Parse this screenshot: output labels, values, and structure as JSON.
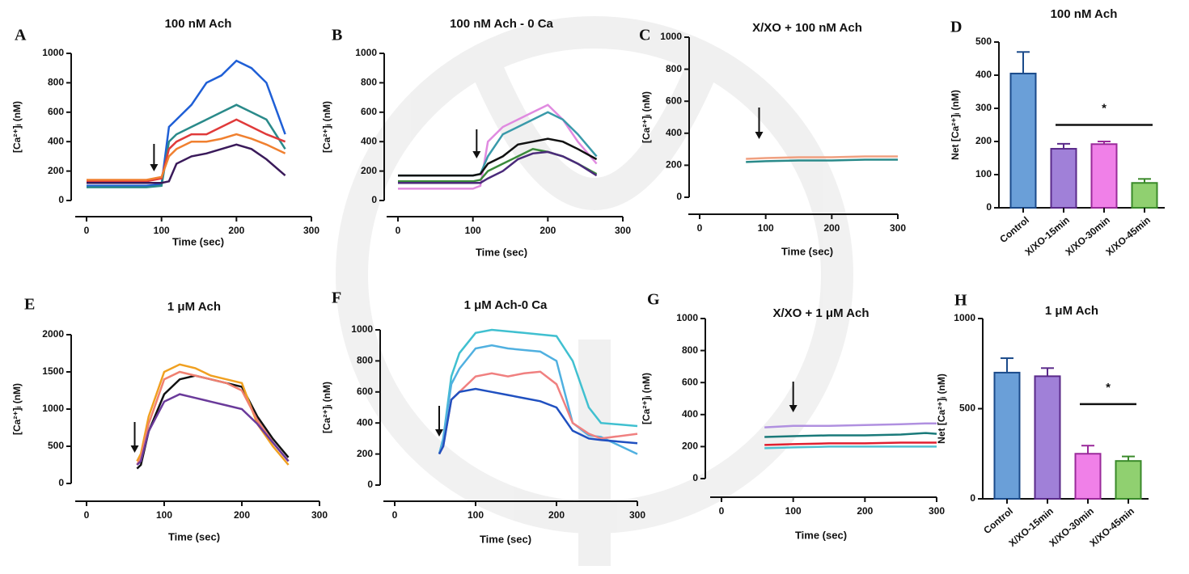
{
  "chart_data": [
    {
      "type": "line",
      "panel": "A",
      "title": "100 nM Ach",
      "x_label": "Time (sec)",
      "y_label": "[Ca²⁺]ᵢ (nM)",
      "xlim": [
        0,
        300
      ],
      "xticks": [
        0,
        100,
        200,
        300
      ],
      "ylim": [
        0,
        1000
      ],
      "yticks": [
        0,
        200,
        400,
        600,
        800,
        1000
      ],
      "arrow_x": 90,
      "x": [
        0,
        20,
        40,
        60,
        80,
        100,
        110,
        120,
        140,
        160,
        180,
        200,
        220,
        240,
        265
      ],
      "series": [
        {
          "color": "#1f5fd6",
          "values": [
            100,
            100,
            100,
            100,
            100,
            110,
            500,
            550,
            650,
            800,
            850,
            950,
            900,
            800,
            450
          ]
        },
        {
          "color": "#2a8a8a",
          "values": [
            90,
            90,
            90,
            90,
            90,
            100,
            400,
            450,
            500,
            550,
            600,
            650,
            600,
            550,
            350
          ]
        },
        {
          "color": "#e03a3a",
          "values": [
            130,
            130,
            130,
            130,
            130,
            150,
            350,
            400,
            450,
            450,
            500,
            550,
            500,
            450,
            400
          ]
        },
        {
          "color": "#f08030",
          "values": [
            140,
            140,
            140,
            140,
            140,
            160,
            300,
            350,
            400,
            400,
            420,
            450,
            420,
            380,
            320
          ]
        },
        {
          "color": "#3a1a5a",
          "values": [
            120,
            120,
            120,
            120,
            120,
            120,
            130,
            250,
            300,
            320,
            350,
            380,
            350,
            280,
            170
          ]
        }
      ]
    },
    {
      "type": "line",
      "panel": "B",
      "title": "100 nM Ach - 0 Ca",
      "x_label": "Time (sec)",
      "y_label": "[Ca²⁺]ᵢ (nM)",
      "xlim": [
        0,
        300
      ],
      "xticks": [
        0,
        100,
        200,
        300
      ],
      "ylim": [
        0,
        1000
      ],
      "yticks": [
        0,
        200,
        400,
        600,
        800,
        1000
      ],
      "arrow_x": 105,
      "x": [
        0,
        20,
        40,
        60,
        80,
        100,
        110,
        120,
        140,
        160,
        180,
        200,
        220,
        240,
        265
      ],
      "series": [
        {
          "color": "#e08ae0",
          "values": [
            80,
            80,
            80,
            80,
            80,
            80,
            100,
            400,
            500,
            550,
            600,
            650,
            550,
            400,
            250
          ]
        },
        {
          "color": "#3a9aaa",
          "values": [
            170,
            170,
            170,
            170,
            170,
            170,
            180,
            300,
            450,
            500,
            550,
            600,
            550,
            450,
            300
          ]
        },
        {
          "color": "#111111",
          "values": [
            170,
            170,
            170,
            170,
            170,
            170,
            180,
            250,
            300,
            380,
            400,
            420,
            400,
            350,
            280
          ]
        },
        {
          "color": "#3a8a3a",
          "values": [
            130,
            130,
            130,
            130,
            130,
            130,
            140,
            200,
            250,
            300,
            350,
            330,
            300,
            250,
            180
          ]
        },
        {
          "color": "#4a2a7a",
          "values": [
            120,
            120,
            120,
            120,
            120,
            120,
            120,
            150,
            200,
            280,
            320,
            330,
            300,
            250,
            170
          ]
        }
      ]
    },
    {
      "type": "line",
      "panel": "C",
      "title": "X/XO + 100 nM Ach",
      "x_label": "Time (sec)",
      "y_label": "[Ca²⁺]ᵢ (nM)",
      "xlim": [
        0,
        300
      ],
      "xticks": [
        0,
        100,
        200,
        300
      ],
      "ylim": [
        0,
        1000
      ],
      "yticks": [
        0,
        200,
        400,
        600,
        800,
        1000
      ],
      "arrow_x": 90,
      "x": [
        70,
        100,
        150,
        200,
        250,
        300
      ],
      "series": [
        {
          "color": "#f0a080",
          "values": [
            240,
            245,
            250,
            250,
            255,
            255
          ]
        },
        {
          "color": "#2a8a8a",
          "values": [
            220,
            225,
            230,
            230,
            235,
            235
          ]
        }
      ]
    },
    {
      "type": "bar",
      "panel": "D",
      "title": "100 nM Ach",
      "y_label": "Net [Ca²⁺]ᵢ (nM)",
      "annotation": "*",
      "ylim": [
        0,
        500
      ],
      "yticks": [
        0,
        100,
        200,
        300,
        400,
        500
      ],
      "categories": [
        "Control",
        "X/XO-15min",
        "X/XO-30min",
        "X/XO-45min"
      ],
      "values": [
        405,
        178,
        192,
        75
      ],
      "errors": [
        65,
        15,
        8,
        12
      ],
      "colors": [
        "#6a9fd8",
        "#a080d8",
        "#f080e8",
        "#90d070"
      ],
      "edge_colors": [
        "#1a4a8a",
        "#5a2a8a",
        "#9a2a9a",
        "#3a8a2a"
      ]
    },
    {
      "type": "line",
      "panel": "E",
      "title": "1 μM Ach",
      "x_label": "Time (sec)",
      "y_label": "[Ca²⁺]ᵢ (nM)",
      "xlim": [
        0,
        300
      ],
      "xticks": [
        0,
        100,
        200,
        300
      ],
      "ylim": [
        0,
        2000
      ],
      "yticks": [
        0,
        500,
        1000,
        1500,
        2000
      ],
      "arrow_x": 62,
      "x": [
        65,
        70,
        80,
        100,
        120,
        140,
        160,
        180,
        200,
        220,
        240,
        260
      ],
      "series": [
        {
          "color": "#111111",
          "values": [
            200,
            250,
            700,
            1200,
            1400,
            1450,
            1400,
            1350,
            1300,
            900,
            600,
            350
          ]
        },
        {
          "color": "#f0a020",
          "values": [
            300,
            400,
            900,
            1500,
            1600,
            1550,
            1450,
            1400,
            1350,
            800,
            500,
            250
          ]
        },
        {
          "color": "#f08070",
          "values": [
            250,
            350,
            800,
            1400,
            1500,
            1450,
            1400,
            1350,
            1250,
            850,
            550,
            300
          ]
        },
        {
          "color": "#6a3a9a",
          "values": [
            250,
            300,
            700,
            1100,
            1200,
            1150,
            1100,
            1050,
            1000,
            800,
            550,
            300
          ]
        }
      ]
    },
    {
      "type": "line",
      "panel": "F",
      "title": "1 μM Ach-0 Ca",
      "x_label": "Time (sec)",
      "y_label": "[Ca²⁺]ᵢ (nM)",
      "xlim": [
        0,
        300
      ],
      "xticks": [
        0,
        100,
        200,
        300
      ],
      "ylim": [
        0,
        1000
      ],
      "yticks": [
        0,
        200,
        400,
        600,
        800,
        1000
      ],
      "arrow_x": 55,
      "x": [
        55,
        60,
        70,
        80,
        100,
        120,
        140,
        160,
        180,
        200,
        220,
        240,
        255,
        300
      ],
      "series": [
        {
          "color": "#40c0d0",
          "values": [
            200,
            300,
            700,
            850,
            980,
            1000,
            990,
            980,
            970,
            960,
            800,
            500,
            400,
            380
          ]
        },
        {
          "color": "#50b0e0",
          "values": [
            200,
            300,
            650,
            750,
            880,
            900,
            880,
            870,
            860,
            800,
            400,
            320,
            310,
            200
          ]
        },
        {
          "color": "#f08080",
          "values": [
            200,
            250,
            550,
            600,
            700,
            720,
            700,
            720,
            730,
            650,
            400,
            330,
            300,
            330
          ]
        },
        {
          "color": "#2050c0",
          "values": [
            200,
            250,
            550,
            600,
            620,
            600,
            580,
            560,
            540,
            500,
            350,
            300,
            290,
            270
          ]
        }
      ]
    },
    {
      "type": "line",
      "panel": "G",
      "title": "X/XO + 1 μM Ach",
      "x_label": "Time (sec)",
      "y_label": "[Ca²⁺]ᵢ (nM)",
      "xlim": [
        0,
        300
      ],
      "xticks": [
        0,
        100,
        200,
        300
      ],
      "ylim": [
        0,
        1000
      ],
      "yticks": [
        0,
        200,
        400,
        600,
        800,
        1000
      ],
      "arrow_x": 100,
      "x": [
        60,
        100,
        150,
        200,
        250,
        285,
        300
      ],
      "series": [
        {
          "color": "#b090e0",
          "values": [
            320,
            330,
            330,
            335,
            340,
            345,
            345
          ]
        },
        {
          "color": "#1a7a7a",
          "values": [
            260,
            265,
            270,
            270,
            275,
            285,
            280
          ]
        },
        {
          "color": "#e02030",
          "values": [
            210,
            215,
            220,
            220,
            225,
            225,
            225
          ]
        },
        {
          "color": "#50c0d0",
          "values": [
            190,
            195,
            200,
            200,
            200,
            200,
            200
          ]
        }
      ]
    },
    {
      "type": "bar",
      "panel": "H",
      "title": "1 μM Ach",
      "y_label": "Net [Ca²⁺]ᵢ (nM)",
      "annotation": "*",
      "ylim": [
        0,
        1000
      ],
      "yticks": [
        0,
        500,
        1000
      ],
      "categories": [
        "Control",
        "X/XO-15min",
        "X/XO-30min",
        "X/XO-45min"
      ],
      "values": [
        700,
        680,
        250,
        210
      ],
      "errors": [
        80,
        45,
        45,
        25
      ],
      "colors": [
        "#6a9fd8",
        "#a080d8",
        "#f080e8",
        "#90d070"
      ],
      "edge_colors": [
        "#1a4a8a",
        "#5a2a8a",
        "#9a2a9a",
        "#3a8a2a"
      ]
    }
  ]
}
